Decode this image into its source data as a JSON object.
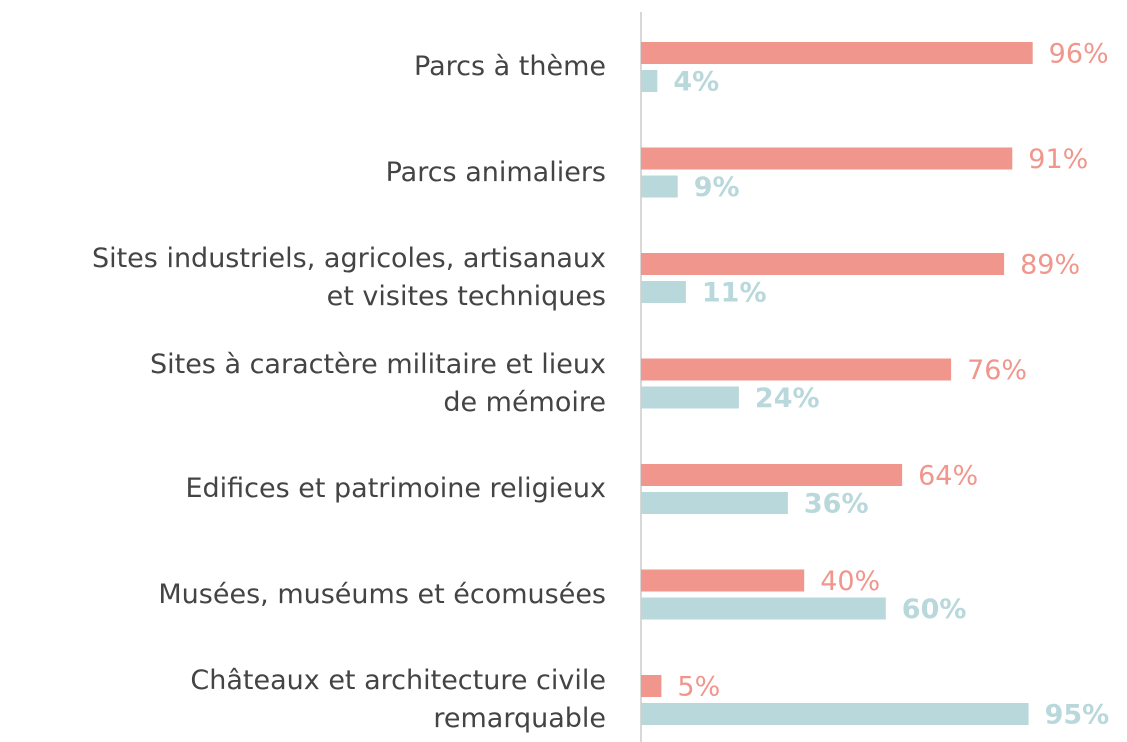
{
  "chart_data": {
    "type": "hbar",
    "categories": [
      "Parcs à thème",
      "Parcs animaliers",
      "Sites industriels, agricoles, artisanaux\net visites techniques",
      "Sites à caractère militaire et lieux\nde mémoire",
      "Edifices et patrimoine religieux",
      "Musées, muséums et écomusées",
      "Châteaux et architecture civile\nremarquable"
    ],
    "series": [
      {
        "color": "#f0968c",
        "values": [
          96,
          91,
          89,
          76,
          64,
          40,
          5
        ],
        "value_labels": [
          "96%",
          "91%",
          "89%",
          "76%",
          "64%",
          "40%",
          "5%"
        ]
      },
      {
        "color": "#b9d8dc",
        "values": [
          4,
          9,
          11,
          24,
          36,
          60,
          95
        ],
        "value_labels": [
          "4%",
          "9%",
          "11%",
          "24%",
          "36%",
          "60%",
          "95%"
        ]
      }
    ],
    "xlim": [
      0,
      100
    ]
  }
}
